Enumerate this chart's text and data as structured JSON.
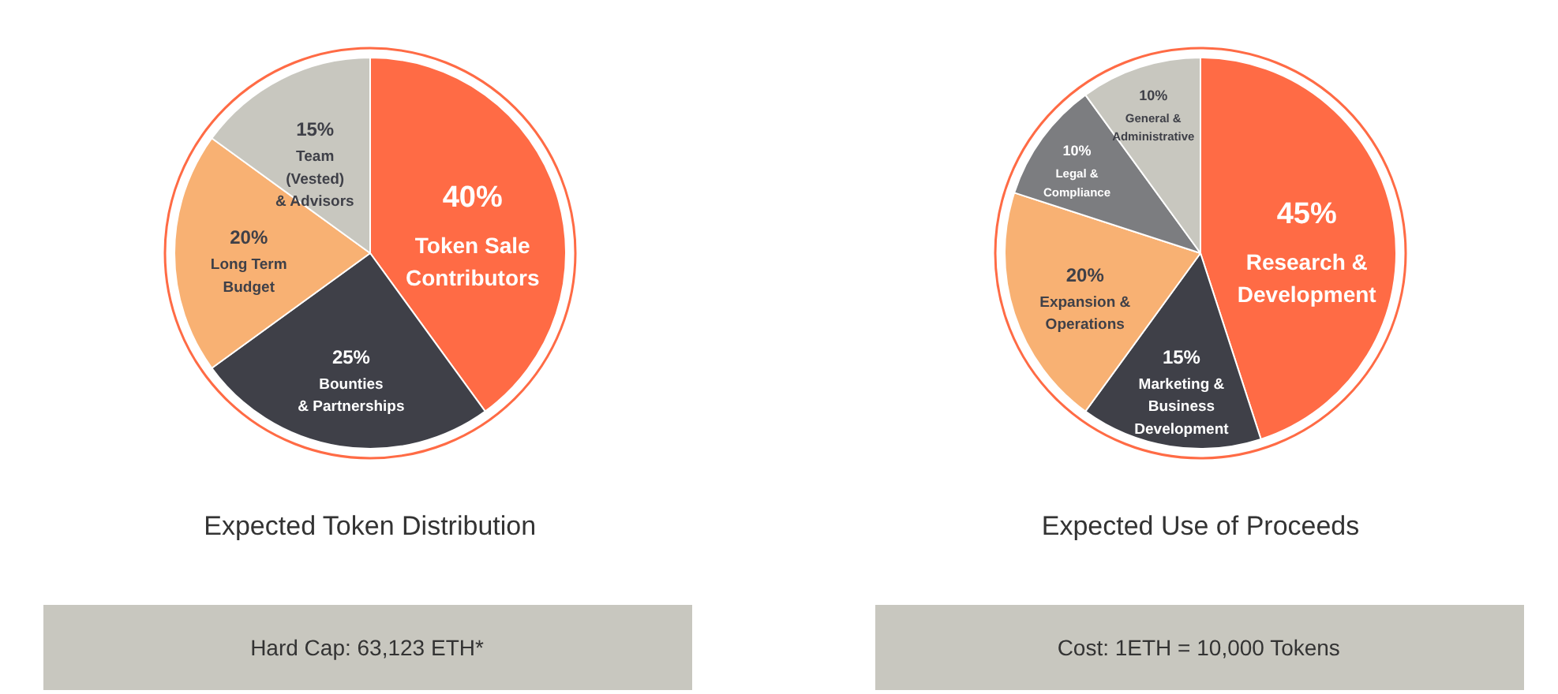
{
  "chart_data": [
    {
      "type": "pie",
      "title": "Expected Token Distribution",
      "categories": [
        "Token Sale\nContributors",
        "Bounties\n& Partnerships",
        "Long Term\nBudget",
        "Team\n(Vested)\n& Advisors"
      ],
      "values": [
        40,
        25,
        20,
        15
      ],
      "colors": [
        "#ff6b45",
        "#3f4048",
        "#f8b173",
        "#c8c7bf"
      ],
      "value_labels": [
        "40%",
        "25%",
        "20%",
        "15%"
      ],
      "annotations": [
        "Hard Cap: 63,123 ETH*"
      ]
    },
    {
      "type": "pie",
      "title": "Expected Use of Proceeds",
      "categories": [
        "Research &\nDevelopment",
        "Marketing &\nBusiness\nDevelopment",
        "Expansion &\nOperations",
        "Legal &\nCompliance",
        "General &\nAdministrative"
      ],
      "values": [
        45,
        15,
        20,
        10,
        10
      ],
      "colors": [
        "#ff6b45",
        "#3f4048",
        "#f8b173",
        "#7c7d80",
        "#c8c7bf"
      ],
      "value_labels": [
        "45%",
        "15%",
        "20%",
        "10%",
        "10%"
      ],
      "annotations": [
        "Cost: 1ETH = 10,000 Tokens"
      ]
    }
  ]
}
